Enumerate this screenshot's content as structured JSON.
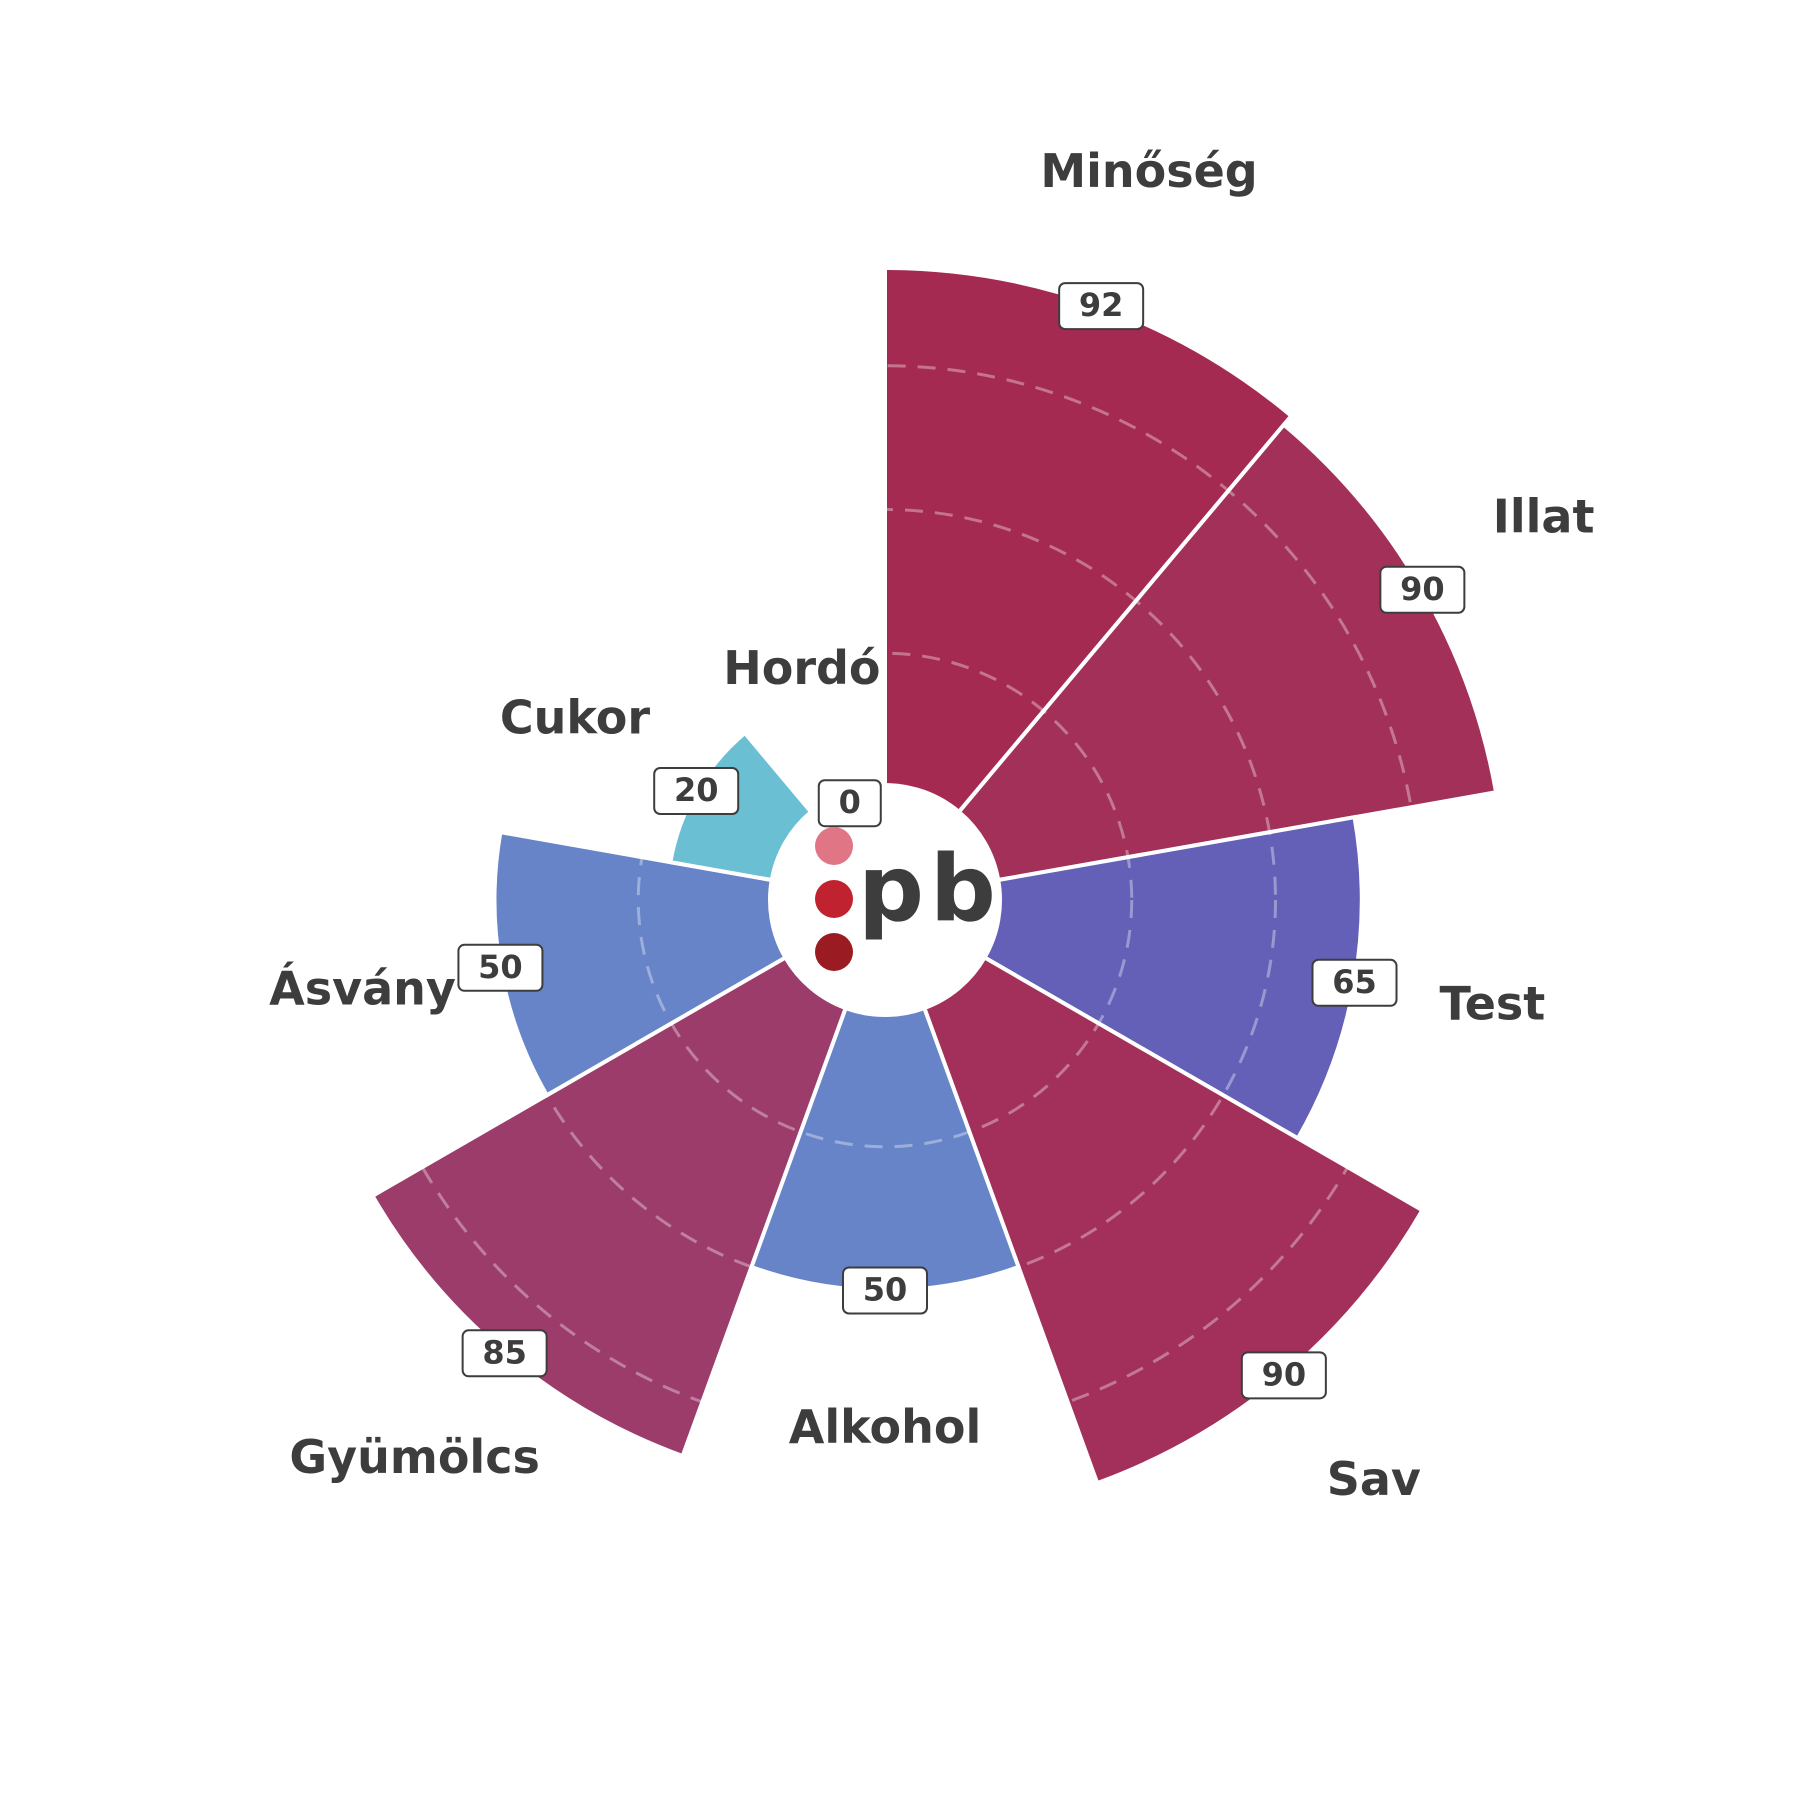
{
  "chart_data": {
    "type": "polar-area",
    "logo": "pb",
    "categories": [
      "Minőség",
      "Illat",
      "Test",
      "Sav",
      "Alkohol",
      "Gyümölcs",
      "Ásvány",
      "Cukor",
      "Hordó"
    ],
    "values": [
      92,
      90,
      65,
      90,
      50,
      85,
      50,
      20,
      0
    ],
    "colors": [
      "#a52a52",
      "#a33058",
      "#6460b8",
      "#a3305a",
      "#6784c8",
      "#9c3c6a",
      "#6784c8",
      "#6bbfd3",
      "#a52a52"
    ],
    "ylim": [
      0,
      100
    ],
    "yticks": [
      25,
      50,
      75
    ],
    "grid": true
  }
}
